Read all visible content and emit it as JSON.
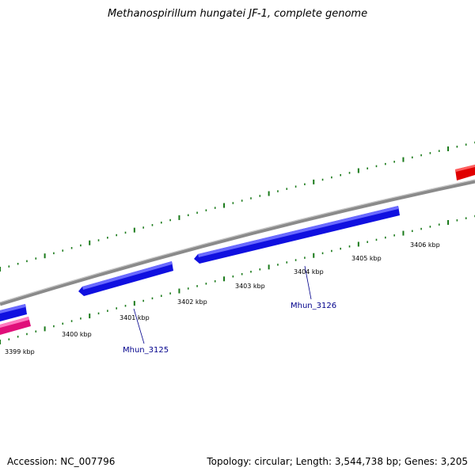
{
  "title": "Methanospirillum hungatei JF-1, complete genome",
  "footer": {
    "accession": "Accession: NC_007796",
    "stats": "Topology: circular; Length: 3,544,738 bp; Genes: 3,205"
  },
  "tick_labels": [
    "3399 kbp",
    "3400 kbp",
    "3401 kbp",
    "3402 kbp",
    "3403 kbp",
    "3404 kbp",
    "3405 kbp",
    "3406 kbp"
  ],
  "gene_labels": [
    "Mhun_3125",
    "Mhun_3126"
  ],
  "colors": {
    "backbone": "#808080",
    "tick": "#1a7a1a",
    "gene_forward": "#e00000",
    "gene_reverse": "#1010e0",
    "rna": "#e0107a",
    "label": "#00008b"
  }
}
